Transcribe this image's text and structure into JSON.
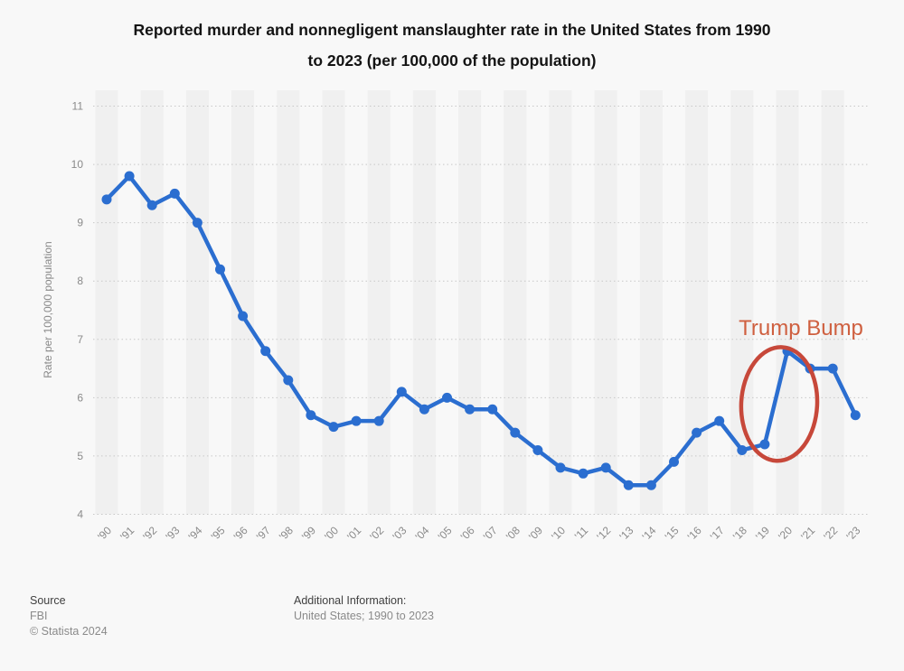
{
  "title": {
    "line1": "Reported murder and nonnegligent manslaughter rate in the United States from 1990",
    "line2": "to 2023 (per 100,000 of the population)"
  },
  "y_axis": {
    "label": "Rate per 100,000 population",
    "ticks": [
      "11",
      "10",
      "9",
      "8",
      "7",
      "6",
      "5",
      "4"
    ]
  },
  "chart_data": {
    "type": "line",
    "title": "Reported murder and nonnegligent manslaughter rate in the United States from 1990 to 2023 (per 100,000 of the population)",
    "categories": [
      "'90",
      "'91",
      "'92",
      "'93",
      "'94",
      "'95",
      "'96",
      "'97",
      "'98",
      "'99",
      "'00",
      "'01",
      "'02",
      "'03",
      "'04",
      "'05",
      "'06",
      "'07",
      "'08",
      "'09",
      "'10",
      "'11",
      "'12",
      "'13",
      "'14",
      "'15",
      "'16",
      "'17",
      "'18",
      "'19",
      "'20",
      "'21",
      "'22",
      "'23"
    ],
    "series": [
      {
        "name": "Rate per 100,000 population",
        "values": [
          9.4,
          9.8,
          9.3,
          9.5,
          9.0,
          8.2,
          7.4,
          6.8,
          6.3,
          5.7,
          5.5,
          5.6,
          5.6,
          6.1,
          5.8,
          6.0,
          5.8,
          5.8,
          5.4,
          5.1,
          4.8,
          4.7,
          4.8,
          4.5,
          4.5,
          4.9,
          5.4,
          5.6,
          5.1,
          5.2,
          6.8,
          6.5,
          6.5,
          5.7
        ]
      }
    ],
    "xlabel": "",
    "ylabel": "Rate per 100,000 population",
    "ylim": [
      4,
      11
    ],
    "grid": "horizontal-dotted",
    "legend": "none",
    "annotation": {
      "text": "Trump Bump",
      "highlighted_years": [
        "'19",
        "'20"
      ]
    }
  },
  "colors": {
    "line": "#2b6ed0",
    "grid": "#c8c8c8",
    "band": "#f0f0f0",
    "background": "#f8f8f8",
    "tick_text": "#8a8a8a",
    "annotation_text": "#cf6040",
    "annotation_ellipse": "#c7483a"
  },
  "footer": {
    "source_label": "Source",
    "source_value": "FBI",
    "copyright": "© Statista 2024",
    "additional_label": "Additional Information:",
    "additional_value": "United States; 1990 to 2023"
  }
}
